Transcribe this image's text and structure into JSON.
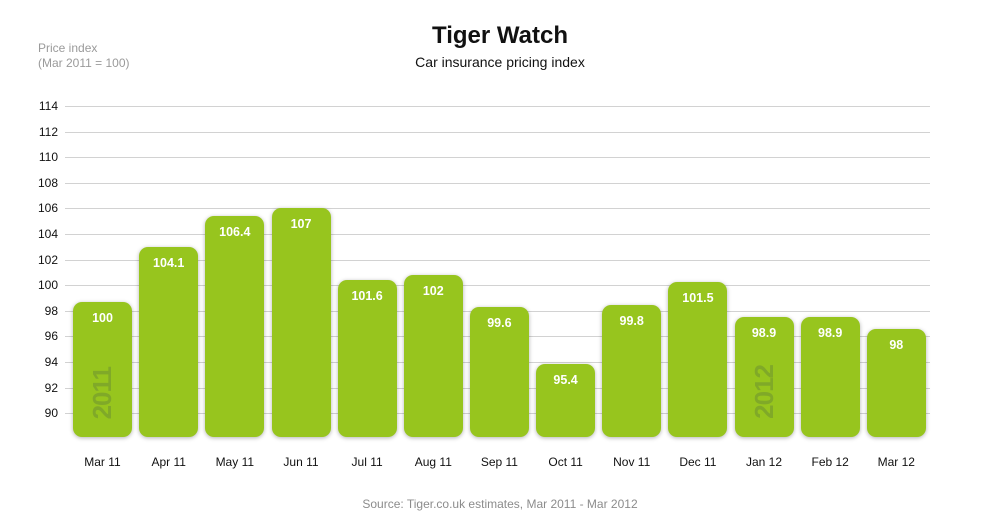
{
  "header": {
    "title": "Tiger Watch",
    "subtitle": "Car insurance pricing index",
    "axis_note_line1": "Price index",
    "axis_note_line2": "(Mar 2011 = 100)"
  },
  "footer": {
    "source": "Source: Tiger.co.uk estimates, Mar 2011 - Mar 2012"
  },
  "chart_data": {
    "type": "bar",
    "title": "Tiger Watch",
    "subtitle": "Car insurance pricing index",
    "ylabel": "Price index (Mar 2011 = 100)",
    "categories": [
      "Mar 11",
      "Apr 11",
      "May 11",
      "Jun 11",
      "Jul 11",
      "Aug 11",
      "Sep 11",
      "Oct 11",
      "Nov 11",
      "Dec 11",
      "Jan 12",
      "Feb 12",
      "Mar 12"
    ],
    "values": [
      100,
      104.1,
      106.4,
      107,
      101.6,
      102,
      99.6,
      95.4,
      99.8,
      101.5,
      98.9,
      98.9,
      98
    ],
    "bar_labels": [
      "100",
      "104.1",
      "106.4",
      "107",
      "101.6",
      "102",
      "99.6",
      "95.4",
      "99.8",
      "101.5",
      "98.9",
      "98.9",
      "98"
    ],
    "yticks": [
      114,
      112,
      110,
      108,
      106,
      104,
      102,
      100,
      98,
      96,
      94,
      92,
      90
    ],
    "ylim": [
      90,
      114
    ],
    "grid": true,
    "legend": "none",
    "year_watermarks": [
      {
        "index": 0,
        "label": "2011"
      },
      {
        "index": 10,
        "label": "2012"
      }
    ],
    "colors": {
      "bar": "#97c51e",
      "watermark": "#80a928",
      "bar_value_label": "#ffffff",
      "gridline": "#d2d2d2",
      "axis_text": "#111111",
      "muted_text": "#9a9a9a",
      "source_text": "#8c8c8c",
      "background": "#ffffff"
    }
  }
}
